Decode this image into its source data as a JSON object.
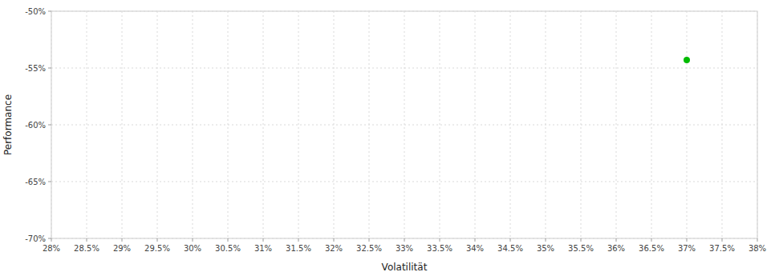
{
  "chart_data": {
    "type": "scatter",
    "xlabel": "Volatilität",
    "ylabel": "Performance",
    "x": [
      0.37
    ],
    "values": [
      -0.543
    ],
    "color": "#00bb00",
    "xlim": [
      0.28,
      0.38
    ],
    "ylim": [
      -0.7,
      -0.5
    ],
    "xticks": [
      {
        "value": 0.28,
        "label": "28%"
      },
      {
        "value": 0.285,
        "label": "28.5%"
      },
      {
        "value": 0.29,
        "label": "29%"
      },
      {
        "value": 0.295,
        "label": "29.5%"
      },
      {
        "value": 0.3,
        "label": "30%"
      },
      {
        "value": 0.305,
        "label": "30.5%"
      },
      {
        "value": 0.31,
        "label": "31%"
      },
      {
        "value": 0.315,
        "label": "31.5%"
      },
      {
        "value": 0.32,
        "label": "32%"
      },
      {
        "value": 0.325,
        "label": "32.5%"
      },
      {
        "value": 0.33,
        "label": "33%"
      },
      {
        "value": 0.335,
        "label": "33.5%"
      },
      {
        "value": 0.34,
        "label": "34%"
      },
      {
        "value": 0.345,
        "label": "34.5%"
      },
      {
        "value": 0.35,
        "label": "35%"
      },
      {
        "value": 0.355,
        "label": "35.5%"
      },
      {
        "value": 0.36,
        "label": "36%"
      },
      {
        "value": 0.365,
        "label": "36.5%"
      },
      {
        "value": 0.37,
        "label": "37%"
      },
      {
        "value": 0.375,
        "label": "37.5%"
      },
      {
        "value": 0.38,
        "label": "38%"
      }
    ],
    "yticks": [
      {
        "value": -0.7,
        "label": "-70%"
      },
      {
        "value": -0.65,
        "label": "-65%"
      },
      {
        "value": -0.6,
        "label": "-60%"
      },
      {
        "value": -0.55,
        "label": "-55%"
      },
      {
        "value": -0.5,
        "label": "-50%"
      }
    ],
    "grid": true
  }
}
